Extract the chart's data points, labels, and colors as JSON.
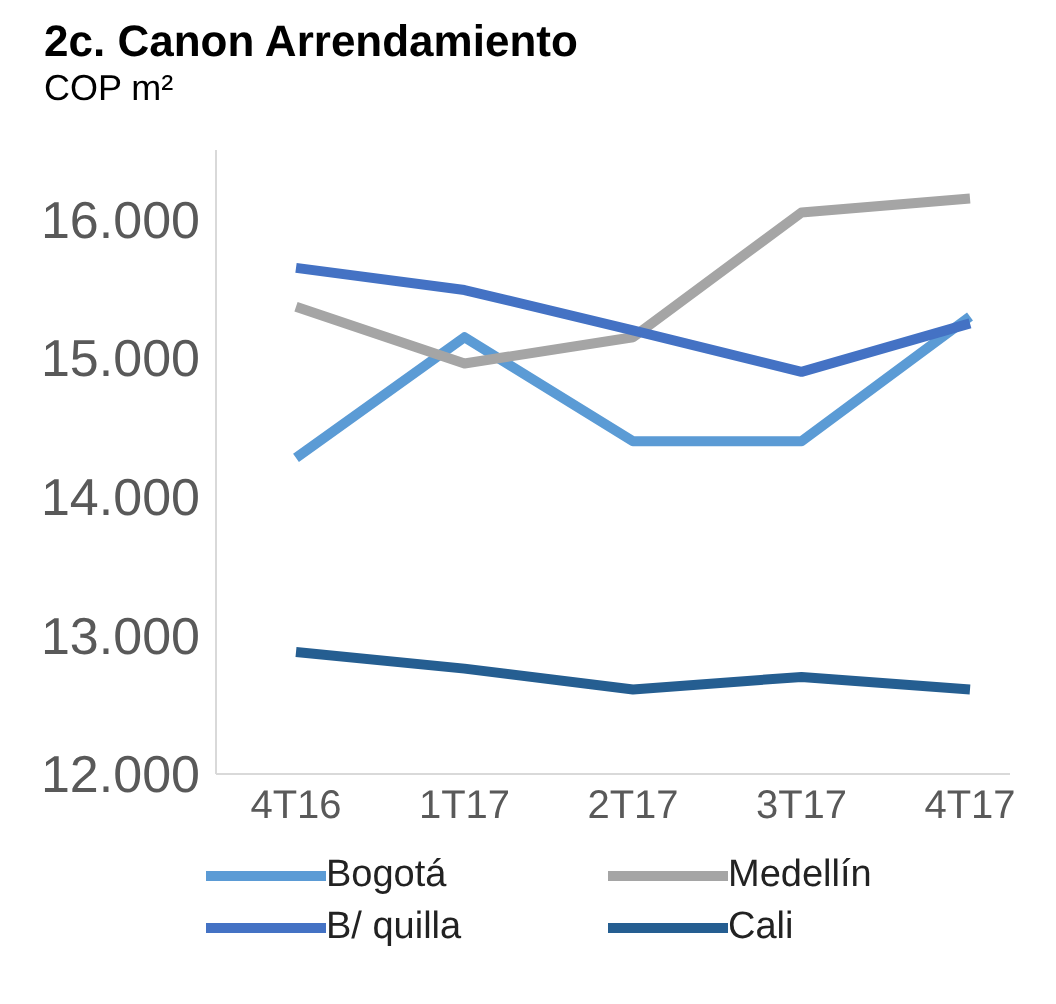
{
  "chart_data": {
    "type": "line",
    "title": "2c. Canon Arrendamiento",
    "subtitle": "COP m²",
    "categories": [
      "4T16",
      "1T17",
      "2T17",
      "3T17",
      "4T17"
    ],
    "series": [
      {
        "name": "Bogotá",
        "color": "#5b9bd5",
        "values": [
          14280,
          15150,
          14400,
          14400,
          15300
        ]
      },
      {
        "name": "Medellín",
        "color": "#a5a5a5",
        "values": [
          15370,
          14960,
          15150,
          16050,
          16150
        ]
      },
      {
        "name": "B/ quilla",
        "color": "#4472c4",
        "values": [
          15650,
          15490,
          15200,
          14900,
          15250
        ]
      },
      {
        "name": "Cali",
        "color": "#255e91",
        "values": [
          12880,
          12760,
          12610,
          12700,
          12610
        ]
      }
    ],
    "ylim": [
      12000,
      16500
    ],
    "yticks": [
      {
        "value": 12000,
        "label": "12.000"
      },
      {
        "value": 13000,
        "label": "13.000"
      },
      {
        "value": 14000,
        "label": "14.000"
      },
      {
        "value": 15000,
        "label": "15.000"
      },
      {
        "value": 16000,
        "label": "16.000"
      }
    ],
    "grid": false,
    "legend": "bottom",
    "marker": "none",
    "line_style": "solid"
  }
}
